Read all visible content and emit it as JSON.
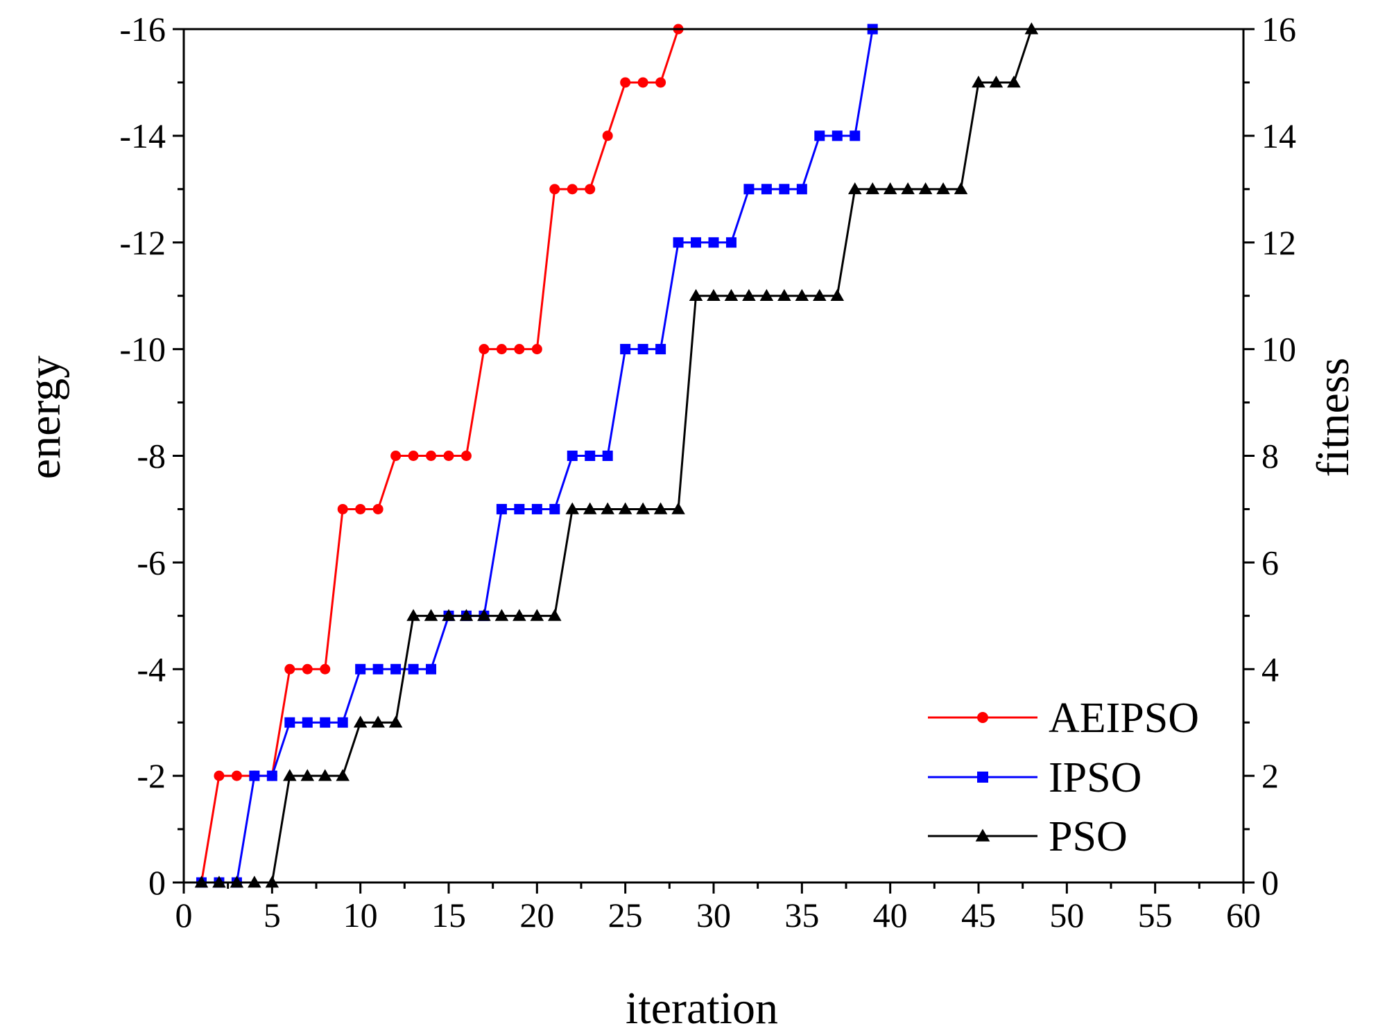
{
  "chart_data": {
    "type": "line",
    "xlabel": "iteration",
    "ylabel_left": "energy",
    "ylabel_right": "fitness",
    "xlim": [
      0,
      60
    ],
    "ylim_left": [
      0,
      -16
    ],
    "ylim_right": [
      0,
      16
    ],
    "x_ticks": [
      "0",
      "5",
      "10",
      "15",
      "20",
      "25",
      "30",
      "35",
      "40",
      "45",
      "50",
      "55",
      "60"
    ],
    "y_ticks_left": [
      "0",
      "-2",
      "-4",
      "-6",
      "-8",
      "-10",
      "-12",
      "-14",
      "-16"
    ],
    "y_ticks_right": [
      "0",
      "2",
      "4",
      "6",
      "8",
      "10",
      "12",
      "14",
      "16"
    ],
    "legend_position": "bottom-right",
    "grid": false,
    "series": [
      {
        "name": "AEIPSO",
        "color": "#ff0000",
        "marker": "circle",
        "x": [
          1,
          2,
          3,
          4,
          5,
          6,
          7,
          8,
          9,
          10,
          11,
          12,
          13,
          14,
          15,
          16,
          17,
          18,
          19,
          20,
          21,
          22,
          23,
          24,
          25,
          26,
          27,
          28
        ],
        "y": [
          0,
          2,
          2,
          2,
          2,
          4,
          4,
          4,
          7,
          7,
          7,
          8,
          8,
          8,
          8,
          8,
          10,
          10,
          10,
          10,
          13,
          13,
          13,
          14,
          15,
          15,
          15,
          16
        ]
      },
      {
        "name": "IPSO",
        "color": "#0000ff",
        "marker": "square",
        "x": [
          1,
          2,
          3,
          4,
          5,
          6,
          7,
          8,
          9,
          10,
          11,
          12,
          13,
          14,
          15,
          16,
          17,
          18,
          19,
          20,
          21,
          22,
          23,
          24,
          25,
          26,
          27,
          28,
          29,
          30,
          31,
          32,
          33,
          34,
          35,
          36,
          37,
          38,
          39
        ],
        "y": [
          0,
          0,
          0,
          2,
          2,
          3,
          3,
          3,
          3,
          4,
          4,
          4,
          4,
          4,
          5,
          5,
          5,
          7,
          7,
          7,
          7,
          8,
          8,
          8,
          10,
          10,
          10,
          12,
          12,
          12,
          12,
          13,
          13,
          13,
          13,
          14,
          14,
          14,
          16
        ]
      },
      {
        "name": "PSO",
        "color": "#000000",
        "marker": "triangle",
        "x": [
          1,
          2,
          3,
          4,
          5,
          6,
          7,
          8,
          9,
          10,
          11,
          12,
          13,
          14,
          15,
          16,
          17,
          18,
          19,
          20,
          21,
          22,
          23,
          24,
          25,
          26,
          27,
          28,
          29,
          30,
          31,
          32,
          33,
          34,
          35,
          36,
          37,
          38,
          39,
          40,
          41,
          42,
          43,
          44,
          45,
          46,
          47,
          48
        ],
        "y": [
          0,
          0,
          0,
          0,
          0,
          2,
          2,
          2,
          2,
          3,
          3,
          3,
          5,
          5,
          5,
          5,
          5,
          5,
          5,
          5,
          5,
          7,
          7,
          7,
          7,
          7,
          7,
          7,
          11,
          11,
          11,
          11,
          11,
          11,
          11,
          11,
          11,
          13,
          13,
          13,
          13,
          13,
          13,
          13,
          15,
          15,
          15,
          16
        ]
      }
    ]
  }
}
